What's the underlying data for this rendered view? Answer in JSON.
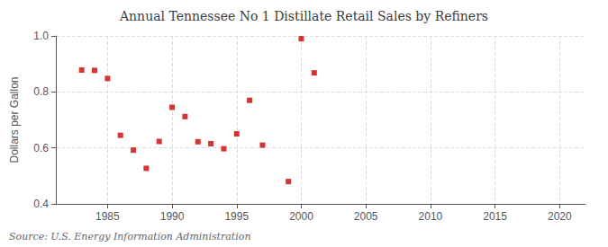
{
  "chart_data": {
    "type": "scatter",
    "title": "Annual Tennessee No 1 Distillate Retail Sales by Refiners",
    "ylabel": "Dollars per Gallon",
    "annotation": "Source: U.S. Energy Information Administration",
    "x": [
      1983,
      1984,
      1985,
      1986,
      1987,
      1988,
      1989,
      1990,
      1991,
      1992,
      1993,
      1994,
      1995,
      1996,
      1997,
      1999,
      2000,
      2001
    ],
    "values": [
      0.878,
      0.877,
      0.848,
      0.645,
      0.592,
      0.527,
      0.623,
      0.745,
      0.712,
      0.622,
      0.615,
      0.597,
      0.65,
      0.77,
      0.61,
      0.48,
      0.99,
      0.868
    ],
    "color": "#cc0000",
    "marker": "square",
    "xlim": [
      1981,
      2022
    ],
    "xticks": [
      1985,
      1990,
      1995,
      2000,
      2005,
      2010,
      2015,
      2020
    ],
    "ylim": [
      0.4,
      1.0
    ],
    "yticks": [
      {
        "value": 0.4,
        "label": "0.4"
      },
      {
        "value": 0.6,
        "label": "0.6"
      },
      {
        "value": 0.8,
        "label": "0.8"
      },
      {
        "value": 1.0,
        "label": "1.0"
      }
    ],
    "grid": true
  }
}
